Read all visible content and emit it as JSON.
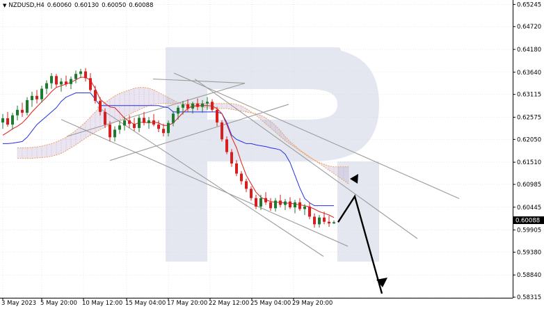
{
  "header": {
    "symbol": "NZDUSD,H4",
    "open": "0.60060",
    "high": "0.60130",
    "low": "0.60050",
    "close": "0.60088"
  },
  "chart_data": {
    "type": "candlestick",
    "title": "NZDUSD,H4",
    "ylim": [
      0.583,
      0.6535
    ],
    "y_ticks": [
      "0.65245",
      "0.64720",
      "0.64180",
      "0.63640",
      "0.63115",
      "0.62575",
      "0.62050",
      "0.61510",
      "0.60985",
      "0.60445",
      "0.59905",
      "0.59380",
      "0.58840",
      "0.58315"
    ],
    "x_ticks": [
      "3 May 2023",
      "5 May 20:00",
      "10 May 12:00",
      "15 May 04:00",
      "17 May 20:00",
      "22 May 12:00",
      "25 May 04:00",
      "29 May 20:00"
    ],
    "current_price": "0.60088",
    "candles": [
      [
        0.6245,
        0.6265,
        0.623,
        0.6255
      ],
      [
        0.6255,
        0.627,
        0.6235,
        0.624
      ],
      [
        0.624,
        0.6268,
        0.6228,
        0.6262
      ],
      [
        0.6262,
        0.6285,
        0.625,
        0.6275
      ],
      [
        0.6275,
        0.6292,
        0.6258,
        0.6268
      ],
      [
        0.6268,
        0.6305,
        0.6262,
        0.6298
      ],
      [
        0.6298,
        0.6318,
        0.6282,
        0.6308
      ],
      [
        0.6308,
        0.6322,
        0.629,
        0.63
      ],
      [
        0.63,
        0.6332,
        0.6292,
        0.6325
      ],
      [
        0.6325,
        0.6345,
        0.6312,
        0.6338
      ],
      [
        0.6338,
        0.6362,
        0.6325,
        0.6355
      ],
      [
        0.6355,
        0.636,
        0.6328,
        0.6335
      ],
      [
        0.6335,
        0.635,
        0.6318,
        0.6342
      ],
      [
        0.6342,
        0.6356,
        0.633,
        0.6336
      ],
      [
        0.6336,
        0.6354,
        0.6324,
        0.6348
      ],
      [
        0.6348,
        0.6368,
        0.6338,
        0.636
      ],
      [
        0.636,
        0.6372,
        0.635,
        0.6366
      ],
      [
        0.6366,
        0.6374,
        0.6342,
        0.635
      ],
      [
        0.635,
        0.6362,
        0.6318,
        0.6322
      ],
      [
        0.6322,
        0.6332,
        0.629,
        0.6296
      ],
      [
        0.6296,
        0.6305,
        0.6262,
        0.627
      ],
      [
        0.627,
        0.6278,
        0.6232,
        0.624
      ],
      [
        0.624,
        0.6248,
        0.62,
        0.621
      ],
      [
        0.621,
        0.6236,
        0.62,
        0.6228
      ],
      [
        0.6228,
        0.6248,
        0.6218,
        0.6238
      ],
      [
        0.6238,
        0.6258,
        0.6226,
        0.625
      ],
      [
        0.625,
        0.6262,
        0.6232,
        0.6242
      ],
      [
        0.6242,
        0.6256,
        0.6225,
        0.6232
      ],
      [
        0.6232,
        0.6262,
        0.6222,
        0.6256
      ],
      [
        0.6256,
        0.627,
        0.6238,
        0.6244
      ],
      [
        0.6244,
        0.6258,
        0.623,
        0.625
      ],
      [
        0.625,
        0.6265,
        0.6236,
        0.624
      ],
      [
        0.624,
        0.625,
        0.6222,
        0.623
      ],
      [
        0.623,
        0.6242,
        0.6212,
        0.622
      ],
      [
        0.622,
        0.625,
        0.6212,
        0.6244
      ],
      [
        0.6244,
        0.6272,
        0.6236,
        0.6266
      ],
      [
        0.6266,
        0.6285,
        0.6252,
        0.628
      ],
      [
        0.628,
        0.6296,
        0.6264,
        0.6288
      ],
      [
        0.6288,
        0.63,
        0.627,
        0.6278
      ],
      [
        0.6278,
        0.6294,
        0.6266,
        0.629
      ],
      [
        0.629,
        0.6302,
        0.6274,
        0.6282
      ],
      [
        0.6282,
        0.6298,
        0.6268,
        0.629
      ],
      [
        0.629,
        0.6305,
        0.6275,
        0.6294
      ],
      [
        0.6294,
        0.63,
        0.627,
        0.6275
      ],
      [
        0.6275,
        0.6282,
        0.6236,
        0.6245
      ],
      [
        0.6245,
        0.625,
        0.62,
        0.6205
      ],
      [
        0.6205,
        0.6212,
        0.617,
        0.6175
      ],
      [
        0.6175,
        0.6182,
        0.614,
        0.6148
      ],
      [
        0.6148,
        0.6156,
        0.6118,
        0.6124
      ],
      [
        0.6124,
        0.613,
        0.6098,
        0.6106
      ],
      [
        0.6106,
        0.6112,
        0.608,
        0.6088
      ],
      [
        0.6088,
        0.6094,
        0.606,
        0.6066
      ],
      [
        0.6066,
        0.6074,
        0.604,
        0.6046
      ],
      [
        0.6046,
        0.6074,
        0.6038,
        0.6066
      ],
      [
        0.6066,
        0.608,
        0.605,
        0.6056
      ],
      [
        0.6056,
        0.6066,
        0.6036,
        0.6042
      ],
      [
        0.6042,
        0.6066,
        0.6034,
        0.606
      ],
      [
        0.606,
        0.6074,
        0.6044,
        0.605
      ],
      [
        0.605,
        0.6064,
        0.6038,
        0.6058
      ],
      [
        0.6058,
        0.6068,
        0.604,
        0.6044
      ],
      [
        0.6044,
        0.6062,
        0.603,
        0.6056
      ],
      [
        0.6056,
        0.6066,
        0.6036,
        0.604
      ],
      [
        0.604,
        0.6052,
        0.6026,
        0.6046
      ],
      [
        0.6046,
        0.6056,
        0.6016,
        0.6022
      ],
      [
        0.6022,
        0.603,
        0.5996,
        0.6004
      ],
      [
        0.6004,
        0.6026,
        0.5996,
        0.602
      ],
      [
        0.602,
        0.6034,
        0.6004,
        0.601
      ],
      [
        0.601,
        0.6024,
        0.5998,
        0.6006
      ],
      [
        0.6006,
        0.6013,
        0.6005,
        0.6009
      ]
    ],
    "tenkan": [
      0.6215,
      0.6222,
      0.623,
      0.6236,
      0.6244,
      0.6256,
      0.627,
      0.6282,
      0.6294,
      0.6305,
      0.6318,
      0.6328,
      0.6332,
      0.6336,
      0.634,
      0.6346,
      0.6352,
      0.6352,
      0.6345,
      0.6325,
      0.63,
      0.629,
      0.6282,
      0.628,
      0.6268,
      0.6255,
      0.6248,
      0.624,
      0.6245,
      0.6246,
      0.6244,
      0.6246,
      0.6244,
      0.6238,
      0.6238,
      0.6244,
      0.6256,
      0.6268,
      0.6278,
      0.6284,
      0.6285,
      0.6285,
      0.6285,
      0.6284,
      0.6278,
      0.6266,
      0.624,
      0.621,
      0.6185,
      0.615,
      0.612,
      0.61,
      0.608,
      0.6068,
      0.6062,
      0.6058,
      0.6056,
      0.6056,
      0.6054,
      0.6054,
      0.6052,
      0.605,
      0.6048,
      0.6045,
      0.604,
      0.6034,
      0.603,
      0.6026,
      0.602
    ],
    "kijun": [
      0.6195,
      0.6195,
      0.6196,
      0.6198,
      0.62,
      0.621,
      0.6225,
      0.624,
      0.625,
      0.626,
      0.627,
      0.628,
      0.6295,
      0.6305,
      0.631,
      0.6315,
      0.6315,
      0.6315,
      0.6315,
      0.63,
      0.6285,
      0.6285,
      0.6285,
      0.6285,
      0.6285,
      0.6285,
      0.6285,
      0.6285,
      0.6285,
      0.6285,
      0.6285,
      0.6285,
      0.6285,
      0.6282,
      0.628,
      0.627,
      0.627,
      0.627,
      0.627,
      0.627,
      0.627,
      0.627,
      0.627,
      0.627,
      0.627,
      0.6266,
      0.6245,
      0.6215,
      0.6205,
      0.62,
      0.6195,
      0.6195,
      0.6192,
      0.619,
      0.6188,
      0.6185,
      0.6183,
      0.618,
      0.617,
      0.615,
      0.612,
      0.609,
      0.6065,
      0.6055,
      0.6048,
      0.6048,
      0.6048,
      0.6048,
      0.6048
    ],
    "span_a": [
      0.6185,
      0.6185,
      0.6185,
      0.6186,
      0.6187,
      0.6189,
      0.6192,
      0.6195,
      0.6199,
      0.6204,
      0.621,
      0.6218,
      0.6226,
      0.6236,
      0.6246,
      0.6258,
      0.627,
      0.6282,
      0.6292,
      0.63,
      0.6308,
      0.6314,
      0.6318,
      0.6322,
      0.6326,
      0.6328,
      0.6328,
      0.6326,
      0.6322,
      0.6316,
      0.631,
      0.6304,
      0.6298,
      0.6292,
      0.6288,
      0.6284,
      0.6282,
      0.6282,
      0.6282,
      0.628,
      0.6278,
      0.6278,
      0.6278,
      0.6278,
      0.6276,
      0.6274,
      0.6272,
      0.627,
      0.6268,
      0.6266,
      0.6262,
      0.6256,
      0.6248,
      0.6238,
      0.6226,
      0.6212,
      0.62,
      0.619,
      0.618,
      0.6172,
      0.6164,
      0.6156,
      0.6148,
      0.614,
      0.6132,
      0.6124,
      0.6116,
      0.6108,
      0.61
    ],
    "span_b": [
      0.616,
      0.616,
      0.616,
      0.616,
      0.6161,
      0.6162,
      0.6163,
      0.6165,
      0.6168,
      0.6172,
      0.6178,
      0.6185,
      0.6192,
      0.62,
      0.6208,
      0.6215,
      0.6222,
      0.6228,
      0.6234,
      0.624,
      0.6246,
      0.6252,
      0.6258,
      0.6264,
      0.627,
      0.6275,
      0.628,
      0.6285,
      0.6288,
      0.629,
      0.629,
      0.629,
      0.629,
      0.629,
      0.629,
      0.629,
      0.629,
      0.629,
      0.629,
      0.629,
      0.629,
      0.629,
      0.629,
      0.629,
      0.629,
      0.6288,
      0.6284,
      0.6278,
      0.627,
      0.6262,
      0.6252,
      0.6242,
      0.6232,
      0.6222,
      0.6212,
      0.6202,
      0.6194,
      0.6186,
      0.6178,
      0.617,
      0.6162,
      0.6156,
      0.615,
      0.6146,
      0.6142,
      0.614,
      0.614,
      0.614,
      0.614
    ]
  },
  "colors": {
    "bull_candle": "#1e7a2e",
    "bear_candle": "#d81e1e",
    "tenkan_line": "#e31b1b",
    "kijun_line": "#2230e6",
    "cloud_border": "#f3a05c",
    "cloud_fill": "#b2a3cc",
    "trend_lines": "#9c9c9c",
    "forecast_arrow": "#000000",
    "watermark": "#e4e7ef",
    "grid": "#d7d7d7"
  }
}
